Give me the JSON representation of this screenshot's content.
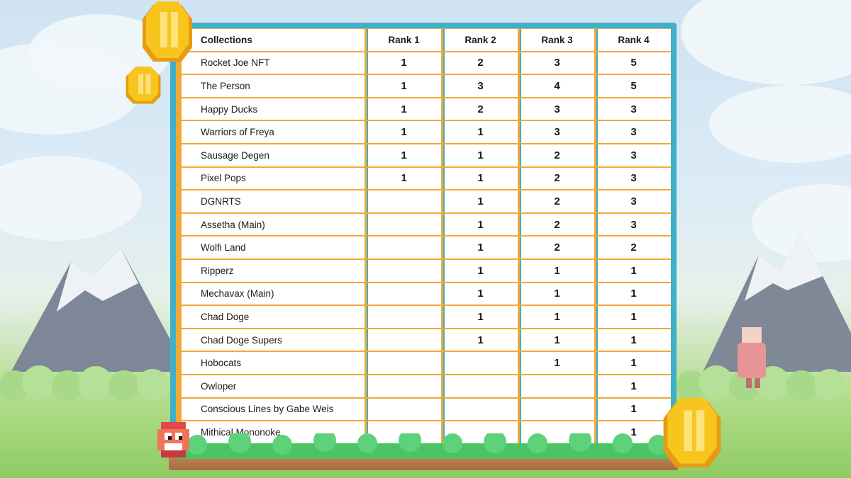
{
  "table": {
    "headers": [
      "Collections",
      "Rank 1",
      "Rank 2",
      "Rank 3",
      "Rank 4"
    ],
    "rows": [
      {
        "name": "Rocket Joe NFT",
        "r1": "1",
        "r2": "2",
        "r3": "3",
        "r4": "5"
      },
      {
        "name": "The Person",
        "r1": "1",
        "r2": "3",
        "r3": "4",
        "r4": "5"
      },
      {
        "name": "Happy Ducks",
        "r1": "1",
        "r2": "2",
        "r3": "3",
        "r4": "3"
      },
      {
        "name": "Warriors of Freya",
        "r1": "1",
        "r2": "1",
        "r3": "3",
        "r4": "3"
      },
      {
        "name": "Sausage Degen",
        "r1": "1",
        "r2": "1",
        "r3": "2",
        "r4": "3"
      },
      {
        "name": "Pixel Pops",
        "r1": "1",
        "r2": "1",
        "r3": "2",
        "r4": "3"
      },
      {
        "name": "DGNRTS",
        "r1": "",
        "r2": "1",
        "r3": "2",
        "r4": "3"
      },
      {
        "name": "Assetha (Main)",
        "r1": "",
        "r2": "1",
        "r3": "2",
        "r4": "3"
      },
      {
        "name": "Wolfi Land",
        "r1": "",
        "r2": "1",
        "r3": "2",
        "r4": "2"
      },
      {
        "name": "Ripperz",
        "r1": "",
        "r2": "1",
        "r3": "1",
        "r4": "1"
      },
      {
        "name": "Mechavax (Main)",
        "r1": "",
        "r2": "1",
        "r3": "1",
        "r4": "1"
      },
      {
        "name": "Chad Doge",
        "r1": "",
        "r2": "1",
        "r3": "1",
        "r4": "1"
      },
      {
        "name": "Chad Doge Supers",
        "r1": "",
        "r2": "1",
        "r3": "1",
        "r4": "1"
      },
      {
        "name": "Hobocats",
        "r1": "",
        "r2": "",
        "r3": "1",
        "r4": "1"
      },
      {
        "name": "Owloper",
        "r1": "",
        "r2": "",
        "r3": "",
        "r4": "1"
      },
      {
        "name": "Conscious Lines by Gabe Weis",
        "r1": "",
        "r2": "",
        "r3": "",
        "r4": "1"
      },
      {
        "name": "Mithical Mononoke",
        "r1": "",
        "r2": "",
        "r3": "",
        "r4": "1"
      }
    ]
  },
  "colors": {
    "board_frame": "#3fb0c9",
    "grid_orange": "#f3a836",
    "coin_gold": "#f7c51e"
  },
  "decor": {
    "icons": [
      "gold-coin-icon",
      "pixel-character-icon",
      "cloud-icon",
      "mountain-icon",
      "bush-icon"
    ]
  }
}
